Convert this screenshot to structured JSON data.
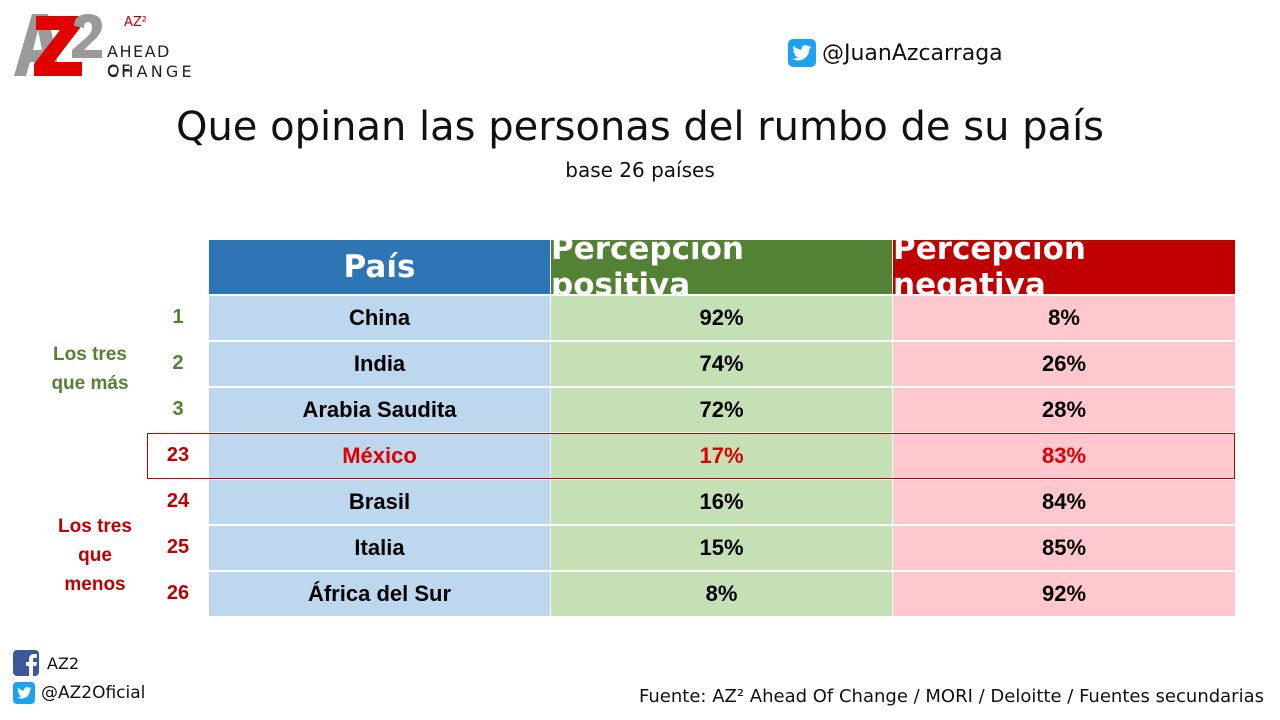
{
  "brand": {
    "logo_mark_text": "AZ2",
    "logo_small": "AZ²",
    "logo_line1": "AHEAD OF",
    "logo_line2": "CHANGE",
    "twitter_header": "@JuanAzcarraga"
  },
  "title": "Que opinan las personas del rumbo de su país",
  "subtitle": "base 26 países",
  "chart_data": {
    "type": "table",
    "columns": [
      "País",
      "Percepción positiva",
      "Percepción negativa"
    ],
    "rows": [
      {
        "rank": "1",
        "country": "China",
        "positive": "92%",
        "negative": "8%"
      },
      {
        "rank": "2",
        "country": "India",
        "positive": "74%",
        "negative": "26%"
      },
      {
        "rank": "3",
        "country": "Arabia Saudita",
        "positive": "72%",
        "negative": "28%"
      },
      {
        "rank": "23",
        "country": "México",
        "positive": "17%",
        "negative": "83%"
      },
      {
        "rank": "24",
        "country": "Brasil",
        "positive": "16%",
        "negative": "84%"
      },
      {
        "rank": "25",
        "country": "Italia",
        "positive": "15%",
        "negative": "85%"
      },
      {
        "rank": "26",
        "country": "África del Sur",
        "positive": "8%",
        "negative": "92%"
      }
    ],
    "highlighted_row": "México",
    "group_labels": {
      "top": [
        "Los tres",
        "que más"
      ],
      "bottom": [
        "Los tres",
        "que",
        "menos"
      ]
    }
  },
  "footer": {
    "facebook": "AZ2",
    "twitter": "@AZ2Oficial",
    "source": "Fuente: AZ² Ahead Of Change / MORI / Deloitte / Fuentes secundarias"
  },
  "colors": {
    "header_country": "#2e75b6",
    "header_positive": "#548235",
    "header_negative": "#c00000",
    "cell_country": "#bdd7ee",
    "cell_positive": "#c5e0b4",
    "cell_negative": "#ffc7ce",
    "highlight": "#e00000",
    "twitter": "#1da1f2",
    "facebook": "#3b5998"
  }
}
